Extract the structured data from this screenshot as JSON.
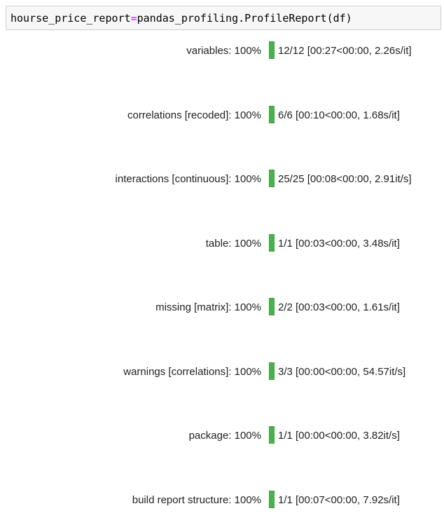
{
  "code_cell": {
    "variable": "hourse_price_report",
    "operator": "=",
    "call": "pandas_profiling.ProfileReport",
    "open_paren": "(",
    "argument": "df",
    "close_paren": ")"
  },
  "progress_rows": [
    {
      "description": "variables: 100%",
      "progress_percent": 100,
      "stats": "12/12 [00:27<00:00,  2.26s/it]"
    },
    {
      "description": "correlations [recoded]: 100%",
      "progress_percent": 100,
      "stats": "6/6 [00:10<00:00,  1.68s/it]"
    },
    {
      "description": "interactions [continuous]: 100%",
      "progress_percent": 100,
      "stats": "25/25 [00:08<00:00,  2.91it/s]"
    },
    {
      "description": "table: 100%",
      "progress_percent": 100,
      "stats": "1/1 [00:03<00:00,  3.48s/it]"
    },
    {
      "description": "missing [matrix]: 100%",
      "progress_percent": 100,
      "stats": "2/2 [00:03<00:00,  1.61s/it]"
    },
    {
      "description": "warnings [correlations]: 100%",
      "progress_percent": 100,
      "stats": "3/3 [00:00<00:00, 54.57it/s]"
    },
    {
      "description": "package: 100%",
      "progress_percent": 100,
      "stats": "1/1 [00:00<00:00,  3.82it/s]"
    },
    {
      "description": "build report structure: 100%",
      "progress_percent": 100,
      "stats": "1/1 [00:07<00:00,  7.92s/it]"
    }
  ],
  "colors": {
    "bar_fill": "#4caf50",
    "code_background": "#f7f7f7",
    "operator": "#aa22ff"
  }
}
